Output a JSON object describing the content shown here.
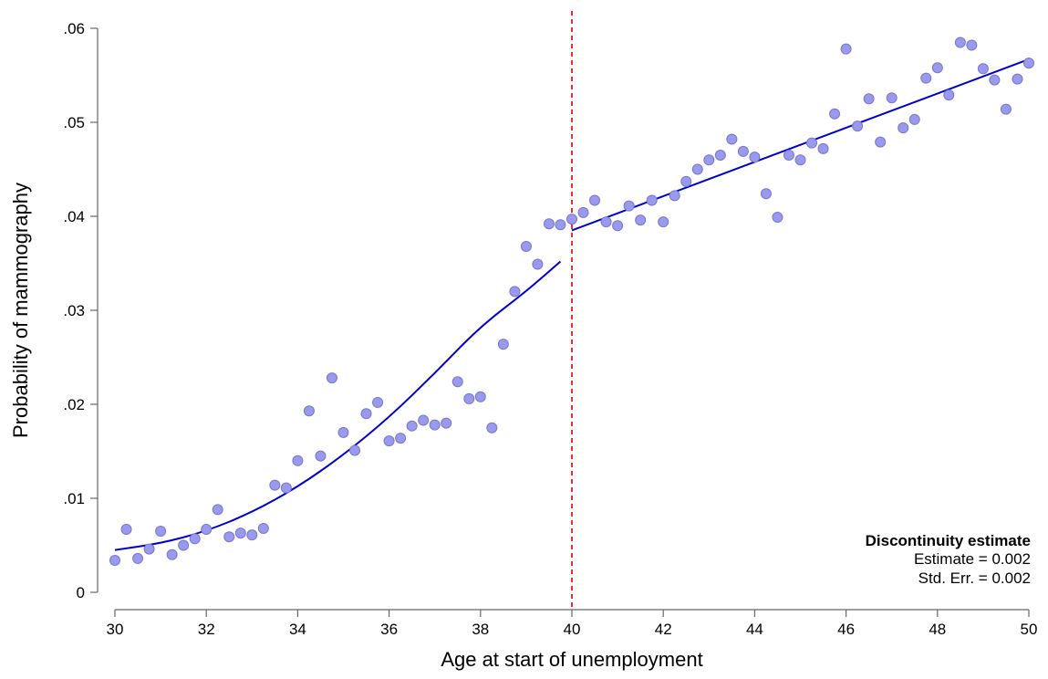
{
  "chart_data": {
    "type": "scatter",
    "xlabel": "Age at start of unemployment",
    "ylabel": "Probability of mammography",
    "xlim": [
      30,
      50
    ],
    "ylim": [
      0,
      0.06
    ],
    "x_ticks": [
      30,
      32,
      34,
      36,
      38,
      40,
      42,
      44,
      46,
      48,
      50
    ],
    "x_tick_labels": [
      "30",
      "32",
      "34",
      "36",
      "38",
      "40",
      "42",
      "44",
      "46",
      "48",
      "50"
    ],
    "y_ticks": [
      0,
      0.01,
      0.02,
      0.03,
      0.04,
      0.05,
      0.06
    ],
    "y_tick_labels": [
      "0",
      ".01",
      ".02",
      ".03",
      ".04",
      ".05",
      ".06"
    ],
    "grid": false,
    "cutoff": 40,
    "colors": {
      "points": "#9999ee",
      "point_stroke": "#7777cc",
      "fit": "#0000cc",
      "cutoff": "#dd0000"
    },
    "points": [
      [
        30.0,
        0.0034
      ],
      [
        30.25,
        0.0067
      ],
      [
        30.5,
        0.0036
      ],
      [
        30.75,
        0.0046
      ],
      [
        31.0,
        0.0065
      ],
      [
        31.25,
        0.004
      ],
      [
        31.5,
        0.005
      ],
      [
        31.75,
        0.0057
      ],
      [
        32.0,
        0.0067
      ],
      [
        32.25,
        0.0088
      ],
      [
        32.5,
        0.0059
      ],
      [
        32.75,
        0.0063
      ],
      [
        33.0,
        0.0061
      ],
      [
        33.25,
        0.0068
      ],
      [
        33.5,
        0.0114
      ],
      [
        33.75,
        0.0111
      ],
      [
        34.0,
        0.014
      ],
      [
        34.25,
        0.0193
      ],
      [
        34.5,
        0.0145
      ],
      [
        34.75,
        0.0228
      ],
      [
        35.0,
        0.017
      ],
      [
        35.25,
        0.0151
      ],
      [
        35.5,
        0.019
      ],
      [
        35.75,
        0.0202
      ],
      [
        36.0,
        0.0161
      ],
      [
        36.25,
        0.0164
      ],
      [
        36.5,
        0.0177
      ],
      [
        36.75,
        0.0183
      ],
      [
        37.0,
        0.0178
      ],
      [
        37.25,
        0.018
      ],
      [
        37.5,
        0.0224
      ],
      [
        37.75,
        0.0206
      ],
      [
        38.0,
        0.0208
      ],
      [
        38.25,
        0.0175
      ],
      [
        38.5,
        0.0264
      ],
      [
        38.75,
        0.032
      ],
      [
        39.0,
        0.0368
      ],
      [
        39.25,
        0.0349
      ],
      [
        39.5,
        0.0392
      ],
      [
        39.75,
        0.0391
      ],
      [
        40.0,
        0.0397
      ],
      [
        40.25,
        0.0404
      ],
      [
        40.5,
        0.0417
      ],
      [
        40.75,
        0.0394
      ],
      [
        41.0,
        0.039
      ],
      [
        41.25,
        0.0411
      ],
      [
        41.5,
        0.0396
      ],
      [
        41.75,
        0.0417
      ],
      [
        42.0,
        0.0394
      ],
      [
        42.25,
        0.0422
      ],
      [
        42.5,
        0.0437
      ],
      [
        42.75,
        0.045
      ],
      [
        43.0,
        0.046
      ],
      [
        43.25,
        0.0465
      ],
      [
        43.5,
        0.0482
      ],
      [
        43.75,
        0.0469
      ],
      [
        44.0,
        0.0463
      ],
      [
        44.25,
        0.0424
      ],
      [
        44.5,
        0.0399
      ],
      [
        44.75,
        0.0465
      ],
      [
        45.0,
        0.046
      ],
      [
        45.25,
        0.0478
      ],
      [
        45.5,
        0.0472
      ],
      [
        45.75,
        0.0509
      ],
      [
        46.0,
        0.0578
      ],
      [
        46.25,
        0.0496
      ],
      [
        46.5,
        0.0525
      ],
      [
        46.75,
        0.0479
      ],
      [
        47.0,
        0.0526
      ],
      [
        47.25,
        0.0494
      ],
      [
        47.5,
        0.0503
      ],
      [
        47.75,
        0.0547
      ],
      [
        48.0,
        0.0558
      ],
      [
        48.25,
        0.0529
      ],
      [
        48.5,
        0.0585
      ],
      [
        48.75,
        0.0582
      ],
      [
        49.0,
        0.0557
      ],
      [
        49.25,
        0.0545
      ],
      [
        49.5,
        0.0514
      ],
      [
        49.75,
        0.0546
      ],
      [
        50.0,
        0.0563
      ]
    ],
    "fit_left": [
      [
        30.0,
        0.0045
      ],
      [
        31.0,
        0.0052
      ],
      [
        32.0,
        0.0065
      ],
      [
        33.0,
        0.0085
      ],
      [
        34.0,
        0.0112
      ],
      [
        35.0,
        0.0146
      ],
      [
        36.0,
        0.0186
      ],
      [
        37.0,
        0.0233
      ],
      [
        38.0,
        0.0283
      ],
      [
        39.0,
        0.032
      ],
      [
        39.75,
        0.0352
      ]
    ],
    "fit_right": [
      [
        40.0,
        0.0385
      ],
      [
        50.0,
        0.0567
      ]
    ],
    "annotation": {
      "title": "Discontinuity estimate",
      "estimate": "Estimate = 0.002",
      "std_err": "Std. Err. = 0.002",
      "placement": "bottom-right"
    }
  }
}
